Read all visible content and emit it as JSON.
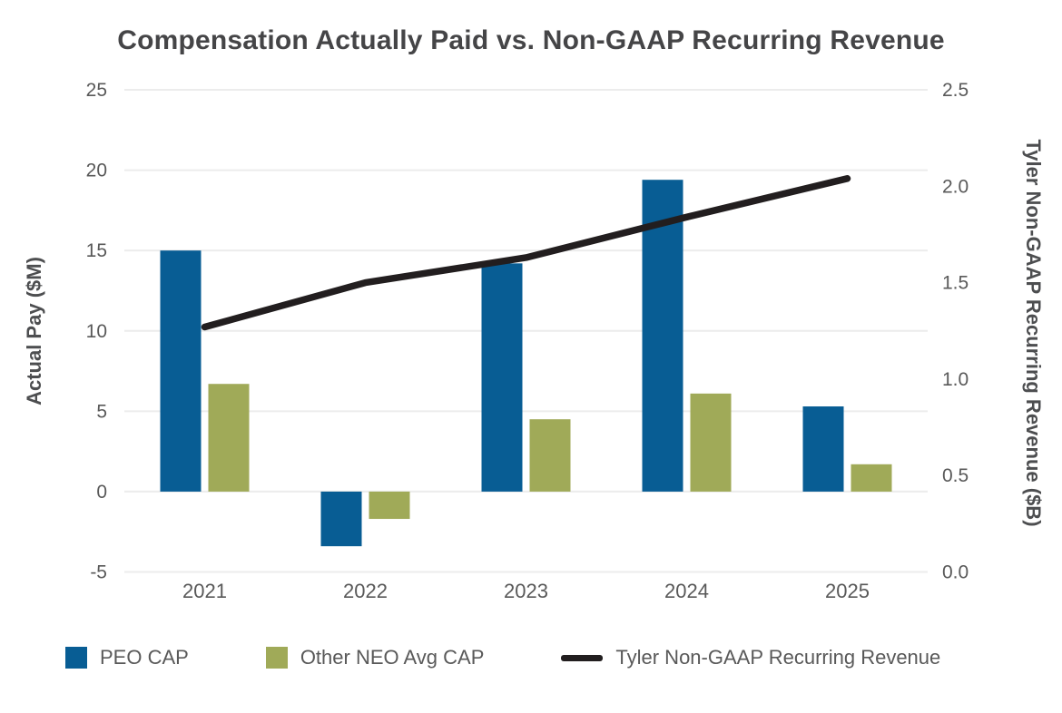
{
  "chart_data": {
    "type": "combo",
    "title": "Compensation Actually Paid vs. Non-GAAP Recurring Revenue",
    "categories": [
      "2021",
      "2022",
      "2023",
      "2024",
      "2025"
    ],
    "series": [
      {
        "name": "PEO CAP",
        "type": "bar",
        "axis": "left",
        "color": "#085d94",
        "values": [
          15.0,
          -3.4,
          14.2,
          19.4,
          5.3
        ]
      },
      {
        "name": "Other NEO Avg CAP",
        "type": "bar",
        "axis": "left",
        "color": "#a0aa58",
        "values": [
          6.7,
          -1.7,
          4.5,
          6.1,
          1.7
        ]
      },
      {
        "name": "Tyler Non-GAAP Recurring Revenue",
        "type": "line",
        "axis": "right",
        "color": "#221e1f",
        "values": [
          1.27,
          1.5,
          1.63,
          1.84,
          2.04
        ]
      }
    ],
    "left_axis": {
      "label": "Actual Pay ($M)",
      "min": -5,
      "max": 25,
      "ticks": [
        "25",
        "20",
        "15",
        "10",
        "5",
        "0",
        "-5"
      ]
    },
    "right_axis": {
      "label": "Tyler Non-GAAP Recurring Revenue ($B)",
      "min": 0,
      "max": 2.5,
      "ticks": [
        "2.5",
        "2.0",
        "1.5",
        "1.0",
        "0.5",
        "0.0"
      ]
    },
    "grid": "horizontal",
    "legend_position": "bottom",
    "colors": {
      "grid": "#ececec",
      "tick_text": "#595959",
      "title_text": "#454547"
    }
  }
}
